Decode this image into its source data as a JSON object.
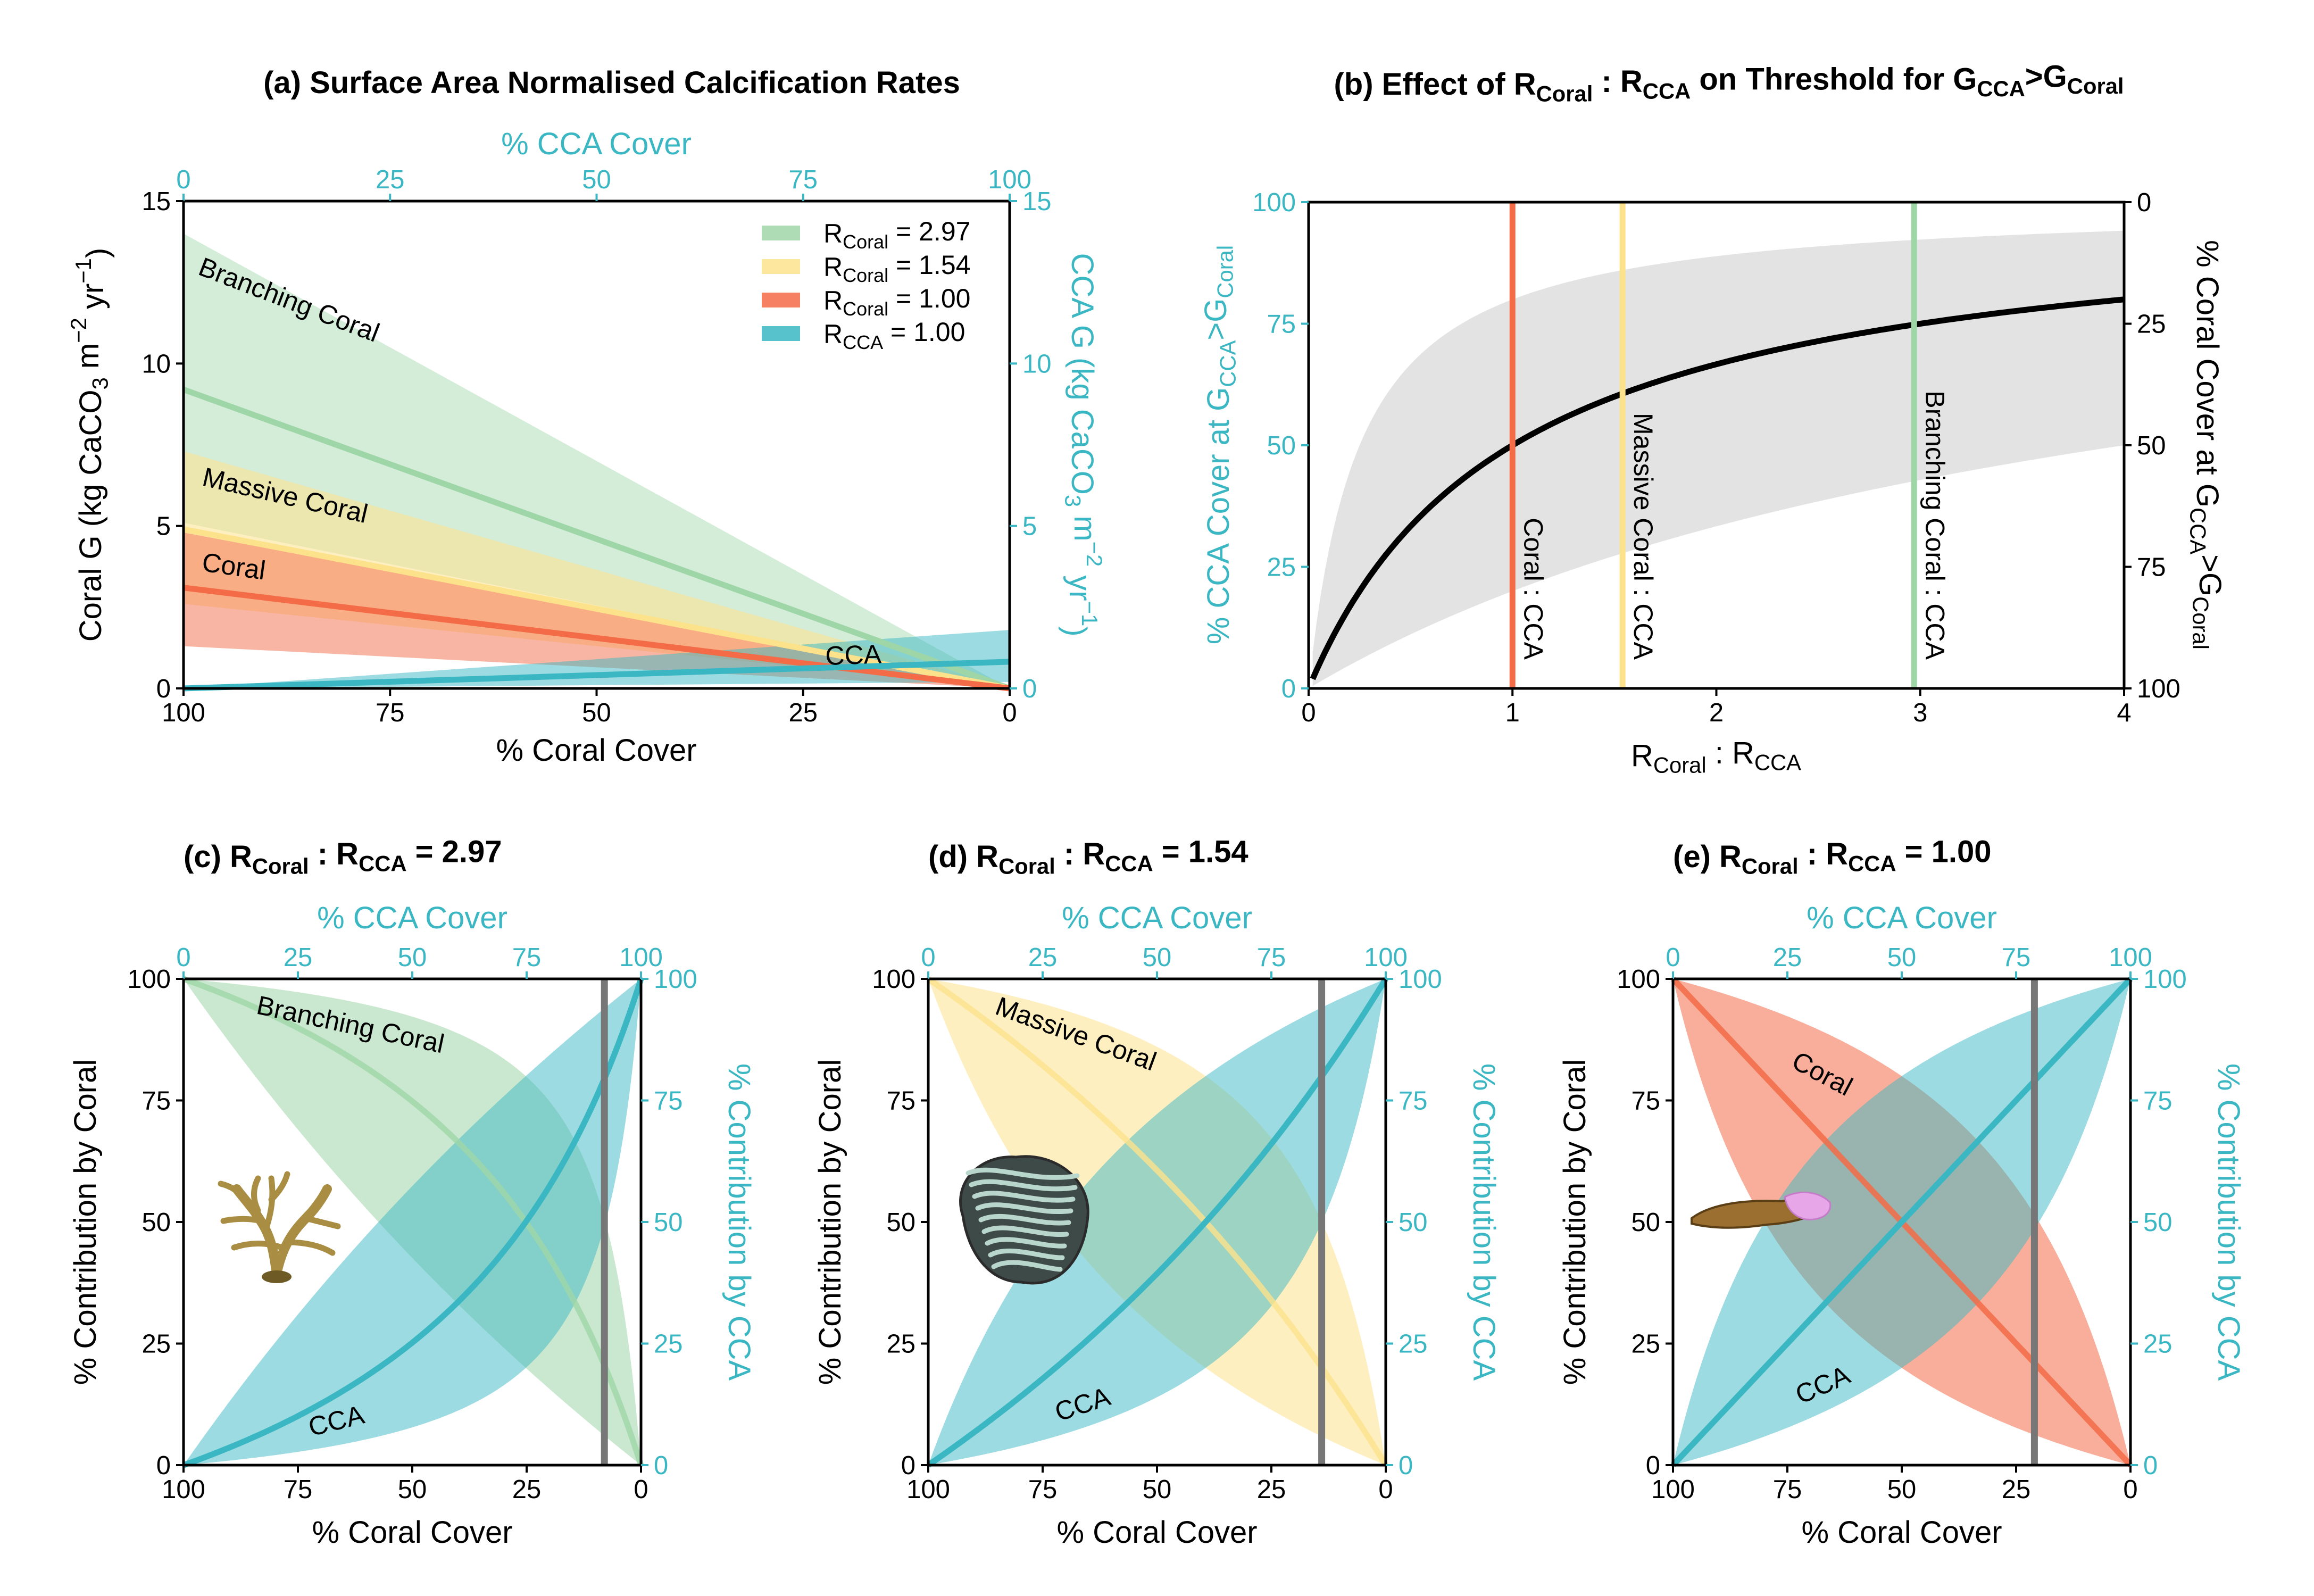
{
  "colors": {
    "branching": "#9fd6a8",
    "massive": "#fde28c",
    "coral": "#f36b47",
    "cca": "#3ab7c3",
    "threshold_curve": "#000000",
    "threshold_band": "#e3e3e3",
    "vline": "#777777"
  },
  "icons": [
    "branching-coral-icon",
    "massive-coral-icon",
    "plate-coral-with-cca-icon"
  ],
  "chart_data": [
    {
      "id": "a",
      "type": "line",
      "title": "(a) Surface Area Normalised Calcification Rates",
      "xlabel": "% Coral Cover",
      "x_top_label": "% CCA Cover",
      "ylabel_left": [
        "Coral G (kg CaCO",
        "3",
        " m",
        "−2",
        " yr",
        "−1",
        ")"
      ],
      "ylabel_right": [
        "CCA G (kg CaCO",
        "3",
        " m",
        "−2",
        " yr",
        "−1",
        ")"
      ],
      "xlim": [
        100,
        0
      ],
      "ylim": [
        0,
        15
      ],
      "x_ticks": [
        "100",
        "75",
        "50",
        "25",
        "0"
      ],
      "x_top_ticks": [
        "0",
        "25",
        "50",
        "75",
        "100"
      ],
      "y_ticks": [
        "0",
        "5",
        "10",
        "15"
      ],
      "legend_position": "top-right",
      "legend": [
        {
          "pre": "R",
          "sub": "Coral",
          "post": " = 2.97"
        },
        {
          "pre": "R",
          "sub": "Coral",
          "post": " = 1.54"
        },
        {
          "pre": "R",
          "sub": "Coral",
          "post": " = 1.00"
        },
        {
          "pre": "R",
          "sub": "CCA",
          "post": " = 1.00"
        }
      ],
      "series": [
        {
          "name": "Branching Coral",
          "color_key": "branching",
          "x": [
            100,
            0
          ],
          "y": [
            9.2,
            0.0
          ],
          "lower": [
            5.1,
            0.0
          ],
          "upper": [
            14.0,
            0.0
          ]
        },
        {
          "name": "Massive Coral",
          "color_key": "massive",
          "x": [
            100,
            0
          ],
          "y": [
            4.9,
            0.0
          ],
          "lower": [
            2.6,
            0.0
          ],
          "upper": [
            7.3,
            0.0
          ]
        },
        {
          "name": "Coral",
          "color_key": "coral",
          "x": [
            100,
            0
          ],
          "y": [
            3.1,
            0.0
          ],
          "lower": [
            1.3,
            0.0
          ],
          "upper": [
            4.8,
            0.0
          ]
        },
        {
          "name": "CCA",
          "color_key": "cca",
          "x": [
            100,
            0
          ],
          "y": [
            0.0,
            0.82
          ],
          "lower": [
            0.0,
            0.2
          ],
          "upper": [
            0.0,
            1.8
          ]
        }
      ]
    },
    {
      "id": "b",
      "type": "line",
      "title": [
        "(b) Effect of R",
        "Coral",
        " : R",
        "CCA",
        " on Threshold for G",
        "CCA",
        ">G",
        "Coral"
      ],
      "xlabel": [
        "R",
        "Coral",
        " : R",
        "CCA"
      ],
      "ylabel_left": [
        "% CCA Cover at G",
        "CCA",
        ">G",
        "Coral"
      ],
      "ylabel_right": [
        "% Coral Cover at G",
        "CCA",
        ">G",
        "Coral"
      ],
      "xlim": [
        0,
        4
      ],
      "ylim": [
        0,
        100
      ],
      "x_ticks": [
        "0",
        "1",
        "2",
        "3",
        "4"
      ],
      "y_ticks": [
        "0",
        "25",
        "50",
        "75",
        "100"
      ],
      "y_right_ticks": [
        "100",
        "75",
        "50",
        "25",
        "0"
      ],
      "threshold_formula": "100*r/(1+r)",
      "band_formula": {
        "lower": "100*(r/4)/(1+r/4)",
        "upper": "100*(4*r)/(1+4*r)"
      },
      "vlines": [
        {
          "x": 1.0,
          "label": "Coral : CCA",
          "color_key": "coral"
        },
        {
          "x": 1.54,
          "label": "Massive Coral : CCA",
          "color_key": "massive"
        },
        {
          "x": 2.97,
          "label": "Branching Coral : CCA",
          "color_key": "branching"
        }
      ]
    },
    {
      "id": "c",
      "type": "line",
      "title": [
        "(c) R",
        "Coral",
        " : R",
        "CCA",
        " = 2.97"
      ],
      "ratio": 2.97,
      "xlabel": "% Coral Cover",
      "x_top_label": "% CCA Cover",
      "ylabel_left": "% Contribution by Coral",
      "ylabel_right": "% Contribution by CCA",
      "xlim": [
        100,
        0
      ],
      "ylim": [
        0,
        100
      ],
      "x_ticks": [
        "100",
        "75",
        "50",
        "25",
        "0"
      ],
      "x_top_ticks": [
        "0",
        "25",
        "50",
        "75",
        "100"
      ],
      "y_ticks": [
        "0",
        "25",
        "50",
        "75",
        "100"
      ],
      "band_factor": 4,
      "threshold_coral_cover": 8,
      "series": [
        {
          "name": "Branching Coral",
          "color_key": "branching"
        },
        {
          "name": "CCA",
          "color_key": "cca"
        }
      ]
    },
    {
      "id": "d",
      "type": "line",
      "title": [
        "(d) R",
        "Coral",
        " : R",
        "CCA",
        " = 1.54"
      ],
      "ratio": 1.54,
      "xlabel": "% Coral Cover",
      "x_top_label": "% CCA Cover",
      "ylabel_left": "% Contribution by Coral",
      "ylabel_right": "% Contribution by CCA",
      "xlim": [
        100,
        0
      ],
      "ylim": [
        0,
        100
      ],
      "x_ticks": [
        "100",
        "75",
        "50",
        "25",
        "0"
      ],
      "x_top_ticks": [
        "0",
        "25",
        "50",
        "75",
        "100"
      ],
      "y_ticks": [
        "0",
        "25",
        "50",
        "75",
        "100"
      ],
      "band_factor": 4,
      "threshold_coral_cover": 14,
      "series": [
        {
          "name": "Massive Coral",
          "color_key": "massive"
        },
        {
          "name": "CCA",
          "color_key": "cca"
        }
      ]
    },
    {
      "id": "e",
      "type": "line",
      "title": [
        "(e) R",
        "Coral",
        " : R",
        "CCA",
        " = 1.00"
      ],
      "ratio": 1.0,
      "xlabel": "% Coral Cover",
      "x_top_label": "% CCA Cover",
      "ylabel_left": "% Contribution by Coral",
      "ylabel_right": "% Contribution by CCA",
      "xlim": [
        100,
        0
      ],
      "ylim": [
        0,
        100
      ],
      "x_ticks": [
        "100",
        "75",
        "50",
        "25",
        "0"
      ],
      "x_top_ticks": [
        "0",
        "25",
        "50",
        "75",
        "100"
      ],
      "y_ticks": [
        "0",
        "25",
        "50",
        "75",
        "100"
      ],
      "band_factor": 4,
      "threshold_coral_cover": 21,
      "series": [
        {
          "name": "Coral",
          "color_key": "coral"
        },
        {
          "name": "CCA",
          "color_key": "cca"
        }
      ]
    }
  ]
}
